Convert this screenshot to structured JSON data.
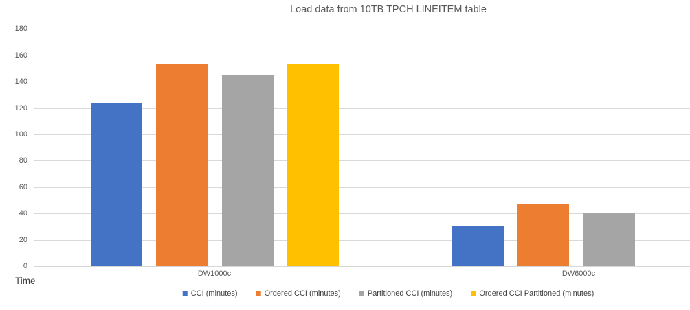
{
  "chart_data": {
    "type": "bar",
    "title": "Load data from 10TB TPCH LINEITEM table",
    "xlabel": "Time",
    "ylabel": "",
    "categories": [
      "DW1000c",
      "DW6000c"
    ],
    "series": [
      {
        "name": "CCI (minutes)",
        "color": "#4472C4",
        "values": [
          124,
          30
        ]
      },
      {
        "name": "Ordered CCI (minutes)",
        "color": "#ED7D31",
        "values": [
          153,
          47
        ]
      },
      {
        "name": "Partitioned CCI (minutes)",
        "color": "#A5A5A5",
        "values": [
          145,
          40
        ]
      },
      {
        "name": "Ordered CCI Partitioned (minutes)",
        "color": "#FFC000",
        "values": [
          153,
          null
        ]
      }
    ],
    "ylim": [
      0,
      180
    ],
    "y_ticks": [
      0,
      20,
      40,
      60,
      80,
      100,
      120,
      140,
      160,
      180
    ],
    "grid": true,
    "legend_position": "bottom",
    "text_color": "#595959",
    "gridline_color": "#D9D9D9"
  }
}
